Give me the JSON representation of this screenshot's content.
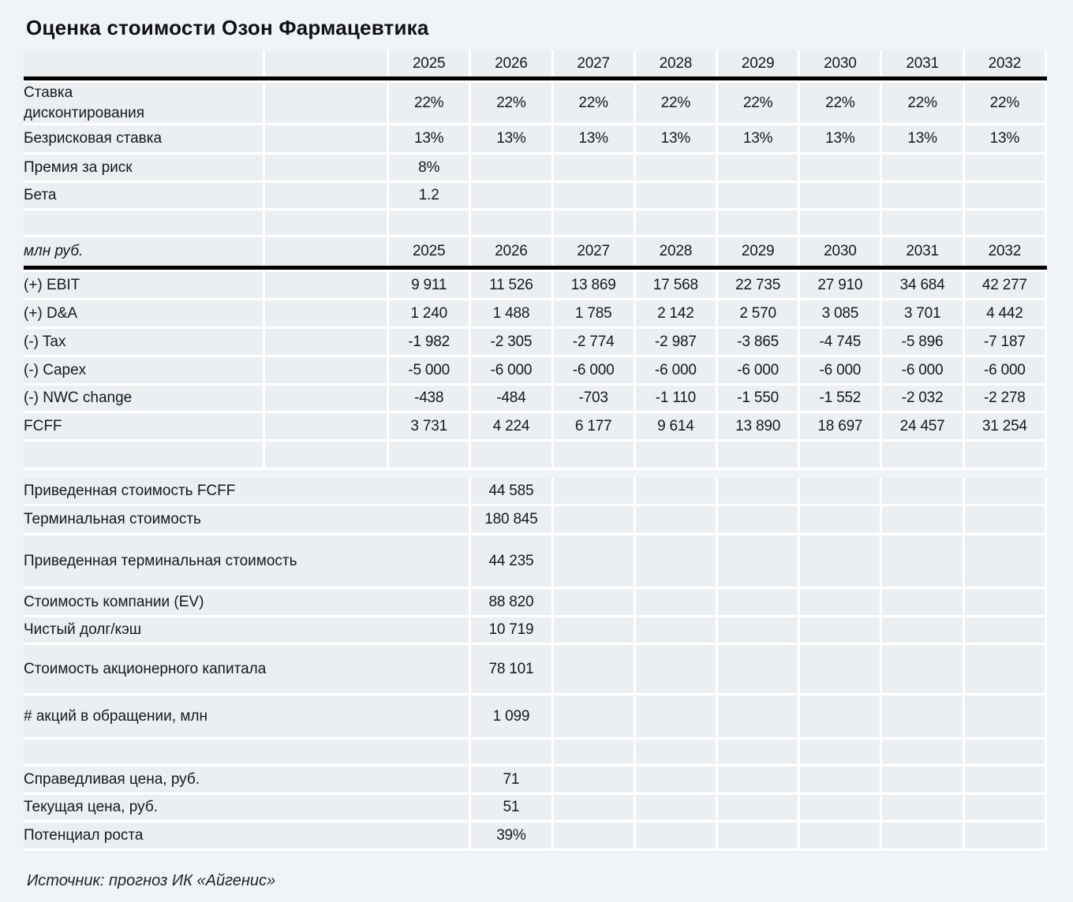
{
  "title": "Оценка стоимости Озон Фармацевтика",
  "years": [
    "2025",
    "2026",
    "2027",
    "2028",
    "2029",
    "2030",
    "2031",
    "2032"
  ],
  "section_rates": {
    "rows": [
      {
        "label": "Ставка\nдисконтирования",
        "values": [
          "22%",
          "22%",
          "22%",
          "22%",
          "22%",
          "22%",
          "22%",
          "22%"
        ]
      },
      {
        "label": "Безрисковая ставка",
        "values": [
          "13%",
          "13%",
          "13%",
          "13%",
          "13%",
          "13%",
          "13%",
          "13%"
        ]
      },
      {
        "label": "Премия за риск",
        "values": [
          "8%",
          "",
          "",
          "",
          "",
          "",
          "",
          ""
        ]
      },
      {
        "label": "Бета",
        "values": [
          "1.2",
          "",
          "",
          "",
          "",
          "",
          "",
          ""
        ]
      },
      {
        "label": "",
        "values": [
          "",
          "",
          "",
          "",
          "",
          "",
          "",
          ""
        ]
      }
    ]
  },
  "section_fcff": {
    "unit_label": "млн руб.",
    "rows": [
      {
        "label": "(+) EBIT",
        "values": [
          "9 911",
          "11 526",
          "13 869",
          "17 568",
          "22 735",
          "27 910",
          "34 684",
          "42 277"
        ]
      },
      {
        "label": "(+) D&A",
        "values": [
          "1 240",
          "1 488",
          "1 785",
          "2 142",
          "2 570",
          "3 085",
          "3 701",
          "4 442"
        ]
      },
      {
        "label": "(-) Tax",
        "values": [
          "-1 982",
          "-2 305",
          "-2 774",
          "-2 987",
          "-3 865",
          "-4 745",
          "-5 896",
          "-7 187"
        ]
      },
      {
        "label": "(-) Capex",
        "values": [
          "-5 000",
          "-6 000",
          "-6 000",
          "-6 000",
          "-6 000",
          "-6 000",
          "-6 000",
          "-6 000"
        ]
      },
      {
        "label": "(-) NWC change",
        "values": [
          "-438",
          "-484",
          "-703",
          "-1 110",
          "-1 550",
          "-1 552",
          "-2 032",
          "-2 278"
        ],
        "bold": false
      },
      {
        "label": "FCFF",
        "values": [
          "3 731",
          "4 224",
          "6 177",
          "9 614",
          "13 890",
          "18 697",
          "24 457",
          "31 254"
        ],
        "bold": true
      },
      {
        "label": "",
        "values": [
          "",
          "",
          "",
          "",
          "",
          "",
          "",
          ""
        ]
      }
    ]
  },
  "section_valuation": {
    "rows": [
      {
        "label": "Приведенная стоимость FCFF",
        "value": "44 585"
      },
      {
        "label": "Терминальная стоимость",
        "value": "180 845"
      },
      {
        "label": "Приведенная терминальная стоимость",
        "value": "44 235"
      },
      {
        "label": "Стоимость компании (EV)",
        "value": "88 820",
        "value_bold": true
      },
      {
        "label": "Чистый долг/кэш",
        "value": "10 719"
      },
      {
        "label": "Стоимость акционерного капитала",
        "value": "78 101",
        "value_bold": true
      },
      {
        "label": "# акций в обращении, млн",
        "value": "1 099"
      },
      {
        "label": "",
        "value": ""
      },
      {
        "label": "Справедливая цена, руб.",
        "value": "71",
        "label_bold": true
      },
      {
        "label": "Текущая цена, руб.",
        "value": "51"
      },
      {
        "label": "Потенциал роста",
        "value": "39%",
        "label_bold": true
      }
    ]
  },
  "source": "Источник: прогноз ИК «Айгенис»"
}
